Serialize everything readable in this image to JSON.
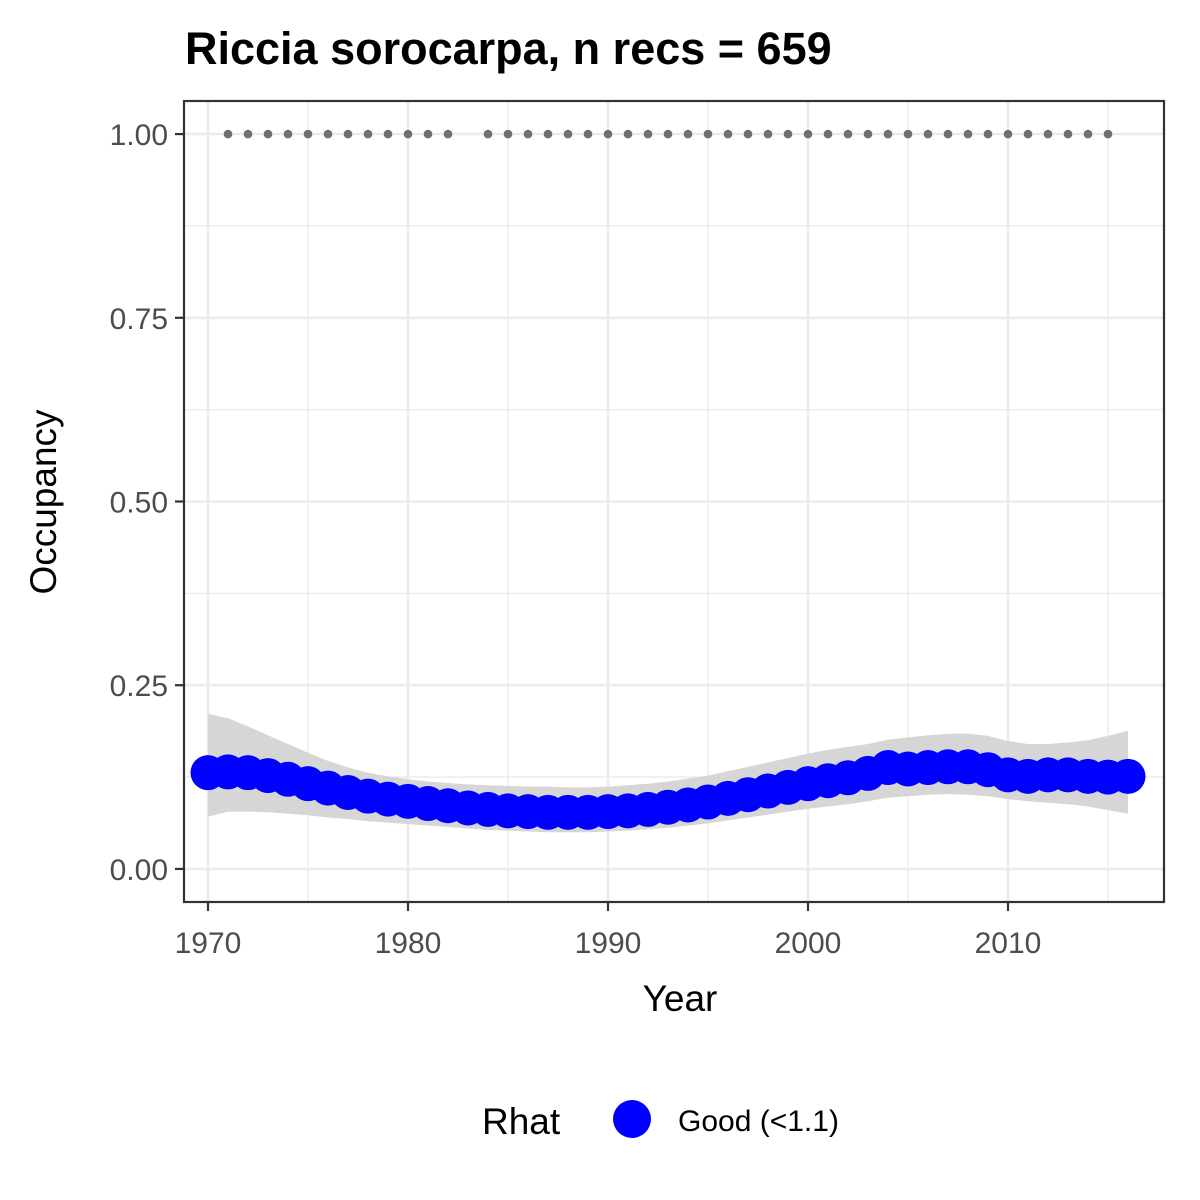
{
  "chart_data": {
    "type": "line",
    "title": "Riccia sorocarpa, n recs = 659",
    "xlabel": "Year",
    "ylabel": "Occupancy",
    "xlim": [
      1968.8,
      2017.8
    ],
    "ylim": [
      -0.045,
      1.045
    ],
    "x_ticks": [
      1970,
      1980,
      1990,
      2000,
      2010
    ],
    "x_tick_labels": [
      "1970",
      "1980",
      "1990",
      "2000",
      "2010"
    ],
    "y_ticks": [
      0,
      0.25,
      0.5,
      0.75,
      1
    ],
    "y_tick_labels": [
      "0.00",
      "0.25",
      "0.50",
      "0.75",
      "1.00"
    ],
    "grid": true,
    "legend": {
      "title": "Rhat",
      "position": "bottom",
      "entries": [
        {
          "label": "Good (<1.1)",
          "color": "#0000ff"
        }
      ]
    },
    "colors": {
      "occupancy": "#0000ff",
      "ribbon": "#d6d6d6",
      "records": "#707070",
      "grid": "#ebebeb",
      "panel_border": "#333333"
    },
    "series": [
      {
        "role": "occupancy",
        "rhat": "Good (<1.1)",
        "x": [
          1970,
          1971,
          1972,
          1973,
          1974,
          1975,
          1976,
          1977,
          1978,
          1979,
          1980,
          1981,
          1982,
          1983,
          1984,
          1985,
          1986,
          1987,
          1988,
          1989,
          1990,
          1991,
          1992,
          1993,
          1994,
          1995,
          1996,
          1997,
          1998,
          1999,
          2000,
          2001,
          2002,
          2003,
          2004,
          2005,
          2006,
          2007,
          2008,
          2009,
          2010,
          2011,
          2012,
          2013,
          2014,
          2015,
          2016
        ],
        "y": [
          0.131,
          0.132,
          0.131,
          0.127,
          0.122,
          0.116,
          0.11,
          0.104,
          0.099,
          0.095,
          0.092,
          0.089,
          0.086,
          0.083,
          0.081,
          0.079,
          0.078,
          0.077,
          0.077,
          0.077,
          0.078,
          0.079,
          0.081,
          0.084,
          0.087,
          0.091,
          0.096,
          0.101,
          0.106,
          0.111,
          0.116,
          0.12,
          0.124,
          0.13,
          0.138,
          0.136,
          0.138,
          0.139,
          0.139,
          0.135,
          0.128,
          0.126,
          0.128,
          0.128,
          0.126,
          0.125,
          0.126
        ],
        "lower": [
          0.071,
          0.078,
          0.078,
          0.077,
          0.075,
          0.073,
          0.07,
          0.068,
          0.065,
          0.063,
          0.061,
          0.059,
          0.057,
          0.055,
          0.053,
          0.052,
          0.051,
          0.05,
          0.05,
          0.05,
          0.051,
          0.052,
          0.054,
          0.056,
          0.059,
          0.062,
          0.066,
          0.07,
          0.074,
          0.078,
          0.082,
          0.085,
          0.088,
          0.092,
          0.097,
          0.099,
          0.101,
          0.102,
          0.101,
          0.099,
          0.095,
          0.092,
          0.09,
          0.088,
          0.085,
          0.08,
          0.075
        ],
        "upper": [
          0.211,
          0.205,
          0.194,
          0.182,
          0.17,
          0.158,
          0.147,
          0.138,
          0.131,
          0.126,
          0.122,
          0.119,
          0.117,
          0.115,
          0.114,
          0.113,
          0.112,
          0.112,
          0.111,
          0.111,
          0.112,
          0.114,
          0.116,
          0.119,
          0.123,
          0.127,
          0.133,
          0.139,
          0.145,
          0.151,
          0.157,
          0.162,
          0.166,
          0.17,
          0.176,
          0.179,
          0.182,
          0.184,
          0.184,
          0.181,
          0.174,
          0.17,
          0.17,
          0.172,
          0.175,
          0.181,
          0.188
        ]
      },
      {
        "role": "records",
        "x": [
          1971,
          1972,
          1973,
          1974,
          1975,
          1976,
          1977,
          1978,
          1979,
          1980,
          1981,
          1982,
          1984,
          1985,
          1986,
          1987,
          1988,
          1989,
          1990,
          1991,
          1992,
          1993,
          1994,
          1995,
          1996,
          1997,
          1998,
          1999,
          2000,
          2001,
          2002,
          2003,
          2004,
          2005,
          2006,
          2007,
          2008,
          2009,
          2010,
          2011,
          2012,
          2013,
          2014,
          2015
        ],
        "y": [
          1,
          1,
          1,
          1,
          1,
          1,
          1,
          1,
          1,
          1,
          1,
          1,
          1,
          1,
          1,
          1,
          1,
          1,
          1,
          1,
          1,
          1,
          1,
          1,
          1,
          1,
          1,
          1,
          1,
          1,
          1,
          1,
          1,
          1,
          1,
          1,
          1,
          1,
          1,
          1,
          1,
          1,
          1,
          1
        ]
      }
    ]
  }
}
